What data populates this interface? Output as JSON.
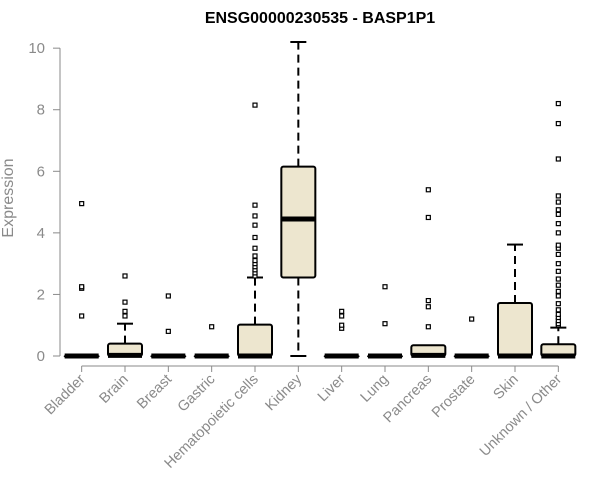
{
  "chart_data": {
    "type": "box",
    "title": "ENSG00000230535 - BASP1P1",
    "ylabel": "Expression",
    "xlabel": "",
    "ylim": [
      0,
      10.2
    ],
    "yticks": [
      0,
      2,
      4,
      6,
      8,
      10
    ],
    "grid": false,
    "box_fill": "#ede6cf",
    "categories": [
      "Bladder",
      "Brain",
      "Breast",
      "Gastric",
      "Hematopoietic cells",
      "Kidney",
      "Liver",
      "Lung",
      "Pancreas",
      "Prostate",
      "Skin",
      "Unknown / Other"
    ],
    "boxes": [
      {
        "category": "Bladder",
        "q1": 0,
        "median": 0,
        "q3": 0,
        "whisker_low": 0,
        "whisker_high": 0,
        "outliers": [
          1.3,
          2.2,
          2.25,
          4.95
        ]
      },
      {
        "category": "Brain",
        "q1": 0,
        "median": 0.02,
        "q3": 0.4,
        "whisker_low": 0,
        "whisker_high": 1.05,
        "outliers": [
          1.3,
          1.45,
          1.75,
          2.6
        ]
      },
      {
        "category": "Breast",
        "q1": 0,
        "median": 0,
        "q3": 0,
        "whisker_low": 0,
        "whisker_high": 0,
        "outliers": [
          0.8,
          1.95
        ]
      },
      {
        "category": "Gastric",
        "q1": 0,
        "median": 0,
        "q3": 0,
        "whisker_low": 0,
        "whisker_high": 0,
        "outliers": [
          0.95
        ]
      },
      {
        "category": "Hematopoietic cells",
        "q1": 0,
        "median": 0,
        "q3": 1.02,
        "whisker_low": 0,
        "whisker_high": 2.55,
        "outliers": [
          2.6,
          2.7,
          2.8,
          2.9,
          3.0,
          3.1,
          3.25,
          3.5,
          3.85,
          4.25,
          4.55,
          4.9,
          8.15
        ]
      },
      {
        "category": "Kidney",
        "q1": 2.55,
        "median": 4.45,
        "q3": 6.15,
        "whisker_low": 0,
        "whisker_high": 10.2,
        "outliers": []
      },
      {
        "category": "Liver",
        "q1": 0,
        "median": 0,
        "q3": 0,
        "whisker_low": 0,
        "whisker_high": 0,
        "outliers": [
          0.9,
          1.0,
          1.3,
          1.45
        ]
      },
      {
        "category": "Lung",
        "q1": 0,
        "median": 0,
        "q3": 0,
        "whisker_low": 0,
        "whisker_high": 0,
        "outliers": [
          1.05,
          2.25
        ]
      },
      {
        "category": "Pancreas",
        "q1": 0,
        "median": 0.02,
        "q3": 0.35,
        "whisker_low": 0,
        "whisker_high": 0.35,
        "outliers": [
          0.95,
          1.6,
          1.8,
          4.5,
          5.4
        ]
      },
      {
        "category": "Prostate",
        "q1": 0,
        "median": 0,
        "q3": 0,
        "whisker_low": 0,
        "whisker_high": 0,
        "outliers": [
          1.2
        ]
      },
      {
        "category": "Skin",
        "q1": 0,
        "median": 0,
        "q3": 1.72,
        "whisker_low": 0,
        "whisker_high": 3.62,
        "outliers": []
      },
      {
        "category": "Unknown / Other",
        "q1": 0,
        "median": 0,
        "q3": 0.38,
        "whisker_low": 0,
        "whisker_high": 0.92,
        "outliers": [
          1.0,
          1.05,
          1.15,
          1.25,
          1.35,
          1.5,
          1.7,
          1.95,
          2.1,
          2.3,
          2.5,
          2.75,
          3.0,
          3.3,
          3.5,
          3.6,
          4.0,
          4.3,
          4.6,
          4.75,
          5.0,
          5.2,
          6.4,
          7.55,
          8.2
        ]
      }
    ]
  }
}
